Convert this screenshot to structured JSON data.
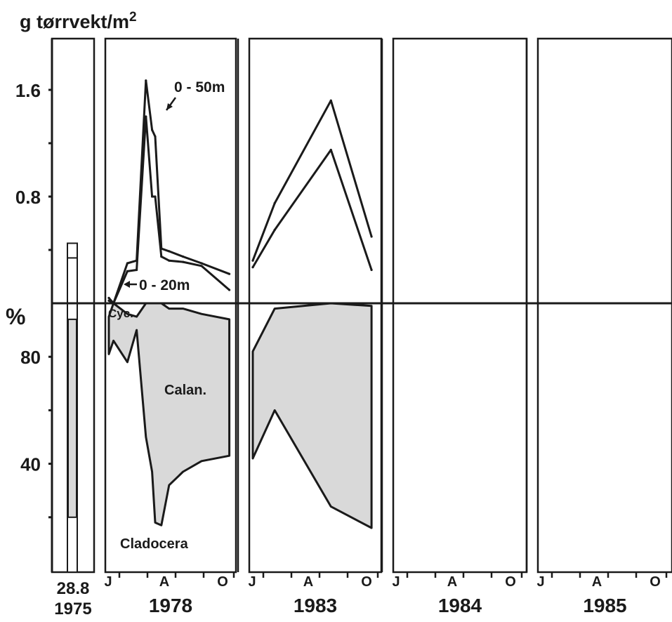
{
  "chart_data": {
    "type": "line",
    "ylabel_top": "g tørrvekt/m",
    "ylabel_top_superscript": "2",
    "ylabel_bottom": "%",
    "top_ticks": [
      1.6,
      1.2,
      0.8,
      0.4,
      0
    ],
    "top_tick_labels": [
      "1.6",
      "0.8"
    ],
    "bottom_ticks": [
      100,
      80,
      60,
      40,
      20
    ],
    "bottom_tick_labels": [
      "80",
      "40"
    ],
    "ylim_top": [
      0,
      2.0
    ],
    "ylim_bottom": [
      0,
      100
    ],
    "shade_color": "#d9d9d9",
    "panels": [
      {
        "year_label": "1975",
        "date_label": "28.8",
        "type": "single-sample",
        "biomass_0_50m": 0.45,
        "biomass_0_20m": 0.34,
        "pct_boundary_upper": 94,
        "pct_boundary_lower": 20
      },
      {
        "year_label": "1978",
        "month_labels": [
          "J",
          "A",
          "O"
        ],
        "x_month": [
          6.0,
          6.15,
          6.6,
          6.9,
          7.2,
          7.4,
          7.5,
          7.7,
          7.95,
          8.4,
          9.0,
          9.9
        ],
        "series": [
          {
            "name": "0-50m",
            "values": [
              0.04,
              0.0,
              0.3,
              0.32,
              1.67,
              1.3,
              1.25,
              0.41,
              0.39,
              0.35,
              0.3,
              0.22
            ]
          },
          {
            "name": "0-20m",
            "values": [
              0.02,
              0.0,
              0.24,
              0.25,
              1.4,
              0.8,
              0.8,
              0.35,
              0.32,
              0.31,
              0.28,
              0.1
            ]
          }
        ],
        "calanoid_upper_pct": [
          95,
          100,
          96,
          95,
          100,
          100,
          100,
          100,
          98,
          98,
          96,
          94
        ],
        "calanoid_lower_pct": [
          81,
          86,
          78,
          90,
          50,
          37,
          18,
          17,
          32,
          37,
          41,
          43
        ],
        "annotations": [
          "0 - 50m",
          "0 - 20m",
          "Cyc.",
          "Calan.",
          "Cladocera"
        ]
      },
      {
        "year_label": "1983",
        "month_labels": [
          "J",
          "A",
          "O"
        ],
        "x_month": [
          6.0,
          6.7,
          8.5,
          9.8
        ],
        "series": [
          {
            "name": "0-50m",
            "values": [
              0.32,
              0.75,
              1.52,
              0.5
            ]
          },
          {
            "name": "0-20m",
            "values": [
              0.27,
              0.55,
              1.15,
              0.25
            ]
          }
        ],
        "calanoid_upper_pct": [
          82,
          98,
          100,
          99
        ],
        "calanoid_lower_pct": [
          42,
          60,
          24,
          16
        ]
      },
      {
        "year_label": "1984",
        "month_labels": [
          "J",
          "A",
          "O"
        ]
      },
      {
        "year_label": "1985",
        "month_labels": [
          "J",
          "A",
          "O"
        ]
      }
    ]
  }
}
